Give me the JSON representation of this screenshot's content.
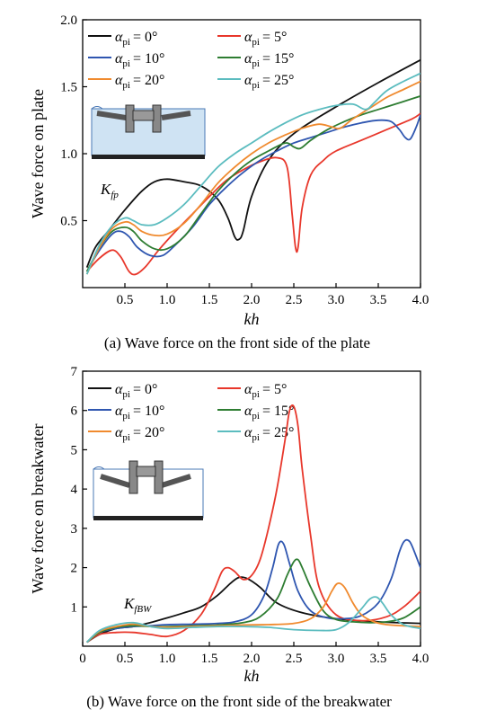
{
  "charts": [
    {
      "caption": "(a) Wave force on the front side of the plate",
      "xlabel": "kh",
      "ylabel": "Wave force on plate",
      "annotation": "K_fp",
      "ann_main": "K",
      "ann_sub": "fp",
      "xlim": [
        0,
        4.0
      ],
      "ylim": [
        0,
        2.0
      ],
      "xticks": [
        "0.5",
        "1.0",
        "1.5",
        "2.0",
        "2.5",
        "3.0",
        "3.5",
        "4.0"
      ],
      "yticks": [
        "0.5",
        "1.0",
        "1.5",
        "2.0"
      ],
      "inset_icon": "plate-breakwater-diagram-icon"
    },
    {
      "caption": "(b) Wave force on the front side of the breakwater",
      "xlabel": "kh",
      "ylabel": "Wave force on breakwater",
      "annotation": "K_fBW",
      "ann_main": "K",
      "ann_sub": "fBW",
      "xlim": [
        0,
        4.0
      ],
      "ylim": [
        0,
        7
      ],
      "xticks": [
        "0",
        "0.5",
        "1.0",
        "1.5",
        "2.0",
        "2.5",
        "3.0",
        "3.5",
        "4.0"
      ],
      "yticks": [
        "1",
        "2",
        "3",
        "4",
        "5",
        "6",
        "7"
      ],
      "inset_icon": "plate-breakwater-diagram-icon"
    }
  ],
  "legend": [
    {
      "label": "= 0°",
      "color": "#111111"
    },
    {
      "label": "= 5°",
      "color": "#e8372b"
    },
    {
      "label": "= 10°",
      "color": "#2f56b0"
    },
    {
      "label": "= 15°",
      "color": "#2e7d32"
    },
    {
      "label": "= 20°",
      "color": "#f08a2e"
    },
    {
      "label": "= 25°",
      "color": "#5bbcbf"
    }
  ],
  "legend_symbol": "α",
  "legend_sub": "pi",
  "chart_data": [
    {
      "type": "line",
      "title": "(a) Wave force on the front side of the plate",
      "xlabel": "kh",
      "ylabel": "Wave force on plate",
      "xlim": [
        0,
        4.0
      ],
      "ylim": [
        0,
        2.0
      ],
      "series": [
        {
          "name": "α_pi = 0°",
          "color": "#111111",
          "x": [
            0.05,
            0.15,
            0.3,
            0.5,
            0.7,
            0.85,
            1.0,
            1.2,
            1.4,
            1.6,
            1.72,
            1.8,
            1.85,
            1.9,
            2.0,
            2.2,
            2.5,
            3.0,
            3.5,
            4.0
          ],
          "y": [
            0.15,
            0.3,
            0.42,
            0.58,
            0.72,
            0.79,
            0.81,
            0.79,
            0.76,
            0.66,
            0.52,
            0.38,
            0.36,
            0.42,
            0.68,
            0.95,
            1.15,
            1.35,
            1.53,
            1.7
          ]
        },
        {
          "name": "α_pi = 5°",
          "color": "#e8372b",
          "x": [
            0.05,
            0.2,
            0.35,
            0.45,
            0.55,
            0.63,
            0.75,
            0.9,
            1.1,
            1.3,
            1.5,
            1.7,
            1.9,
            2.1,
            2.3,
            2.42,
            2.48,
            2.52,
            2.55,
            2.6,
            2.7,
            2.85,
            3.0,
            3.3,
            3.6,
            3.9,
            4.0
          ],
          "y": [
            0.12,
            0.22,
            0.28,
            0.23,
            0.12,
            0.1,
            0.16,
            0.28,
            0.42,
            0.55,
            0.68,
            0.8,
            0.88,
            0.94,
            0.97,
            0.9,
            0.55,
            0.3,
            0.3,
            0.6,
            0.84,
            0.95,
            1.02,
            1.1,
            1.18,
            1.26,
            1.3
          ]
        },
        {
          "name": "α_pi = 10°",
          "color": "#2f56b0",
          "x": [
            0.05,
            0.2,
            0.35,
            0.45,
            0.55,
            0.65,
            0.8,
            0.95,
            1.1,
            1.3,
            1.5,
            1.7,
            1.9,
            2.1,
            2.3,
            2.5,
            2.7,
            2.9,
            3.1,
            3.3,
            3.5,
            3.65,
            3.75,
            3.82,
            3.88,
            3.95,
            4.0
          ],
          "y": [
            0.12,
            0.28,
            0.4,
            0.42,
            0.38,
            0.3,
            0.24,
            0.24,
            0.32,
            0.45,
            0.62,
            0.75,
            0.86,
            0.95,
            1.02,
            1.08,
            1.12,
            1.16,
            1.2,
            1.23,
            1.25,
            1.24,
            1.18,
            1.12,
            1.11,
            1.2,
            1.29
          ]
        },
        {
          "name": "α_pi = 15°",
          "color": "#2e7d32",
          "x": [
            0.05,
            0.2,
            0.35,
            0.5,
            0.6,
            0.7,
            0.85,
            1.0,
            1.2,
            1.4,
            1.6,
            1.8,
            2.0,
            2.2,
            2.4,
            2.5,
            2.58,
            2.7,
            2.9,
            3.1,
            3.3,
            3.5,
            3.7,
            3.9,
            4.0
          ],
          "y": [
            0.12,
            0.3,
            0.42,
            0.45,
            0.42,
            0.35,
            0.29,
            0.29,
            0.38,
            0.55,
            0.72,
            0.85,
            0.95,
            1.02,
            1.08,
            1.05,
            1.04,
            1.1,
            1.18,
            1.24,
            1.29,
            1.33,
            1.37,
            1.41,
            1.43
          ]
        },
        {
          "name": "α_pi = 20°",
          "color": "#f08a2e",
          "x": [
            0.05,
            0.2,
            0.35,
            0.5,
            0.6,
            0.7,
            0.85,
            1.0,
            1.2,
            1.4,
            1.6,
            1.8,
            2.0,
            2.2,
            2.4,
            2.6,
            2.8,
            2.95,
            3.05,
            3.2,
            3.4,
            3.6,
            3.8,
            4.0
          ],
          "y": [
            0.1,
            0.3,
            0.44,
            0.49,
            0.47,
            0.42,
            0.39,
            0.4,
            0.48,
            0.62,
            0.78,
            0.9,
            1.0,
            1.08,
            1.14,
            1.19,
            1.22,
            1.2,
            1.19,
            1.26,
            1.34,
            1.42,
            1.48,
            1.54
          ]
        },
        {
          "name": "α_pi = 25°",
          "color": "#5bbcbf",
          "x": [
            0.05,
            0.2,
            0.35,
            0.5,
            0.6,
            0.7,
            0.85,
            1.0,
            1.2,
            1.4,
            1.6,
            1.8,
            2.0,
            2.2,
            2.4,
            2.6,
            2.8,
            3.0,
            3.2,
            3.35,
            3.45,
            3.6,
            3.8,
            4.0
          ],
          "y": [
            0.1,
            0.32,
            0.46,
            0.52,
            0.5,
            0.47,
            0.47,
            0.52,
            0.62,
            0.76,
            0.9,
            1.0,
            1.08,
            1.16,
            1.23,
            1.29,
            1.33,
            1.36,
            1.37,
            1.33,
            1.38,
            1.47,
            1.54,
            1.6
          ]
        }
      ]
    },
    {
      "type": "line",
      "title": "(b) Wave force on the front side of the breakwater",
      "xlabel": "kh",
      "ylabel": "Wave force on breakwater",
      "xlim": [
        0,
        4.0
      ],
      "ylim": [
        0,
        7
      ],
      "series": [
        {
          "name": "α_pi = 0°",
          "color": "#111111",
          "x": [
            0.05,
            0.2,
            0.4,
            0.6,
            0.8,
            1.0,
            1.2,
            1.4,
            1.6,
            1.75,
            1.85,
            1.95,
            2.1,
            2.3,
            2.6,
            3.0,
            3.5,
            4.0
          ],
          "y": [
            0.1,
            0.3,
            0.45,
            0.5,
            0.6,
            0.72,
            0.85,
            1.0,
            1.3,
            1.6,
            1.75,
            1.72,
            1.5,
            1.1,
            0.85,
            0.7,
            0.62,
            0.58
          ]
        },
        {
          "name": "α_pi = 5°",
          "color": "#e8372b",
          "x": [
            0.05,
            0.2,
            0.4,
            0.6,
            0.8,
            1.0,
            1.2,
            1.4,
            1.55,
            1.65,
            1.72,
            1.8,
            1.9,
            2.0,
            2.1,
            2.2,
            2.3,
            2.4,
            2.45,
            2.5,
            2.55,
            2.6,
            2.7,
            2.8,
            3.0,
            3.3,
            3.6,
            3.8,
            4.0
          ],
          "y": [
            0.1,
            0.3,
            0.35,
            0.35,
            0.3,
            0.25,
            0.4,
            0.8,
            1.4,
            1.9,
            2.0,
            1.9,
            1.7,
            1.8,
            2.2,
            3.0,
            4.0,
            5.3,
            6.0,
            6.1,
            5.6,
            4.5,
            2.8,
            1.5,
            0.8,
            0.65,
            0.75,
            1.0,
            1.4
          ]
        },
        {
          "name": "α_pi = 10°",
          "color": "#2f56b0",
          "x": [
            0.05,
            0.2,
            0.4,
            0.6,
            0.8,
            1.0,
            1.3,
            1.6,
            1.8,
            2.0,
            2.15,
            2.25,
            2.32,
            2.38,
            2.45,
            2.55,
            2.7,
            2.9,
            3.1,
            3.3,
            3.5,
            3.65,
            3.75,
            3.8,
            3.85,
            3.9,
            4.0
          ],
          "y": [
            0.1,
            0.35,
            0.45,
            0.5,
            0.52,
            0.55,
            0.56,
            0.58,
            0.62,
            0.8,
            1.3,
            2.0,
            2.6,
            2.6,
            2.1,
            1.4,
            0.9,
            0.72,
            0.7,
            0.78,
            1.1,
            1.7,
            2.4,
            2.65,
            2.7,
            2.55,
            2.0
          ]
        },
        {
          "name": "α_pi = 15°",
          "color": "#2e7d32",
          "x": [
            0.05,
            0.2,
            0.4,
            0.6,
            0.8,
            1.0,
            1.3,
            1.6,
            1.9,
            2.1,
            2.3,
            2.42,
            2.5,
            2.55,
            2.6,
            2.7,
            2.85,
            3.0,
            3.2,
            3.4,
            3.6,
            3.8,
            4.0
          ],
          "y": [
            0.1,
            0.35,
            0.48,
            0.52,
            0.5,
            0.5,
            0.52,
            0.54,
            0.6,
            0.75,
            1.2,
            1.8,
            2.15,
            2.2,
            2.0,
            1.5,
            0.9,
            0.68,
            0.62,
            0.6,
            0.62,
            0.72,
            1.0
          ]
        },
        {
          "name": "α_pi = 20°",
          "color": "#f08a2e",
          "x": [
            0.05,
            0.2,
            0.4,
            0.6,
            0.8,
            1.0,
            1.3,
            1.6,
            1.9,
            2.2,
            2.5,
            2.7,
            2.85,
            2.95,
            3.02,
            3.1,
            3.2,
            3.3,
            3.45,
            3.6,
            3.8,
            4.0
          ],
          "y": [
            0.1,
            0.38,
            0.5,
            0.56,
            0.5,
            0.48,
            0.5,
            0.52,
            0.54,
            0.55,
            0.58,
            0.7,
            1.0,
            1.4,
            1.6,
            1.5,
            1.1,
            0.8,
            0.62,
            0.55,
            0.52,
            0.5
          ]
        },
        {
          "name": "α_pi = 25°",
          "color": "#5bbcbf",
          "x": [
            0.05,
            0.2,
            0.4,
            0.6,
            0.8,
            1.0,
            1.3,
            1.6,
            1.9,
            2.2,
            2.5,
            2.8,
            3.0,
            3.15,
            3.3,
            3.4,
            3.48,
            3.55,
            3.65,
            3.8,
            4.0
          ],
          "y": [
            0.1,
            0.4,
            0.55,
            0.6,
            0.5,
            0.45,
            0.48,
            0.5,
            0.5,
            0.48,
            0.42,
            0.4,
            0.42,
            0.6,
            0.95,
            1.2,
            1.25,
            1.1,
            0.8,
            0.55,
            0.45
          ]
        }
      ]
    }
  ]
}
